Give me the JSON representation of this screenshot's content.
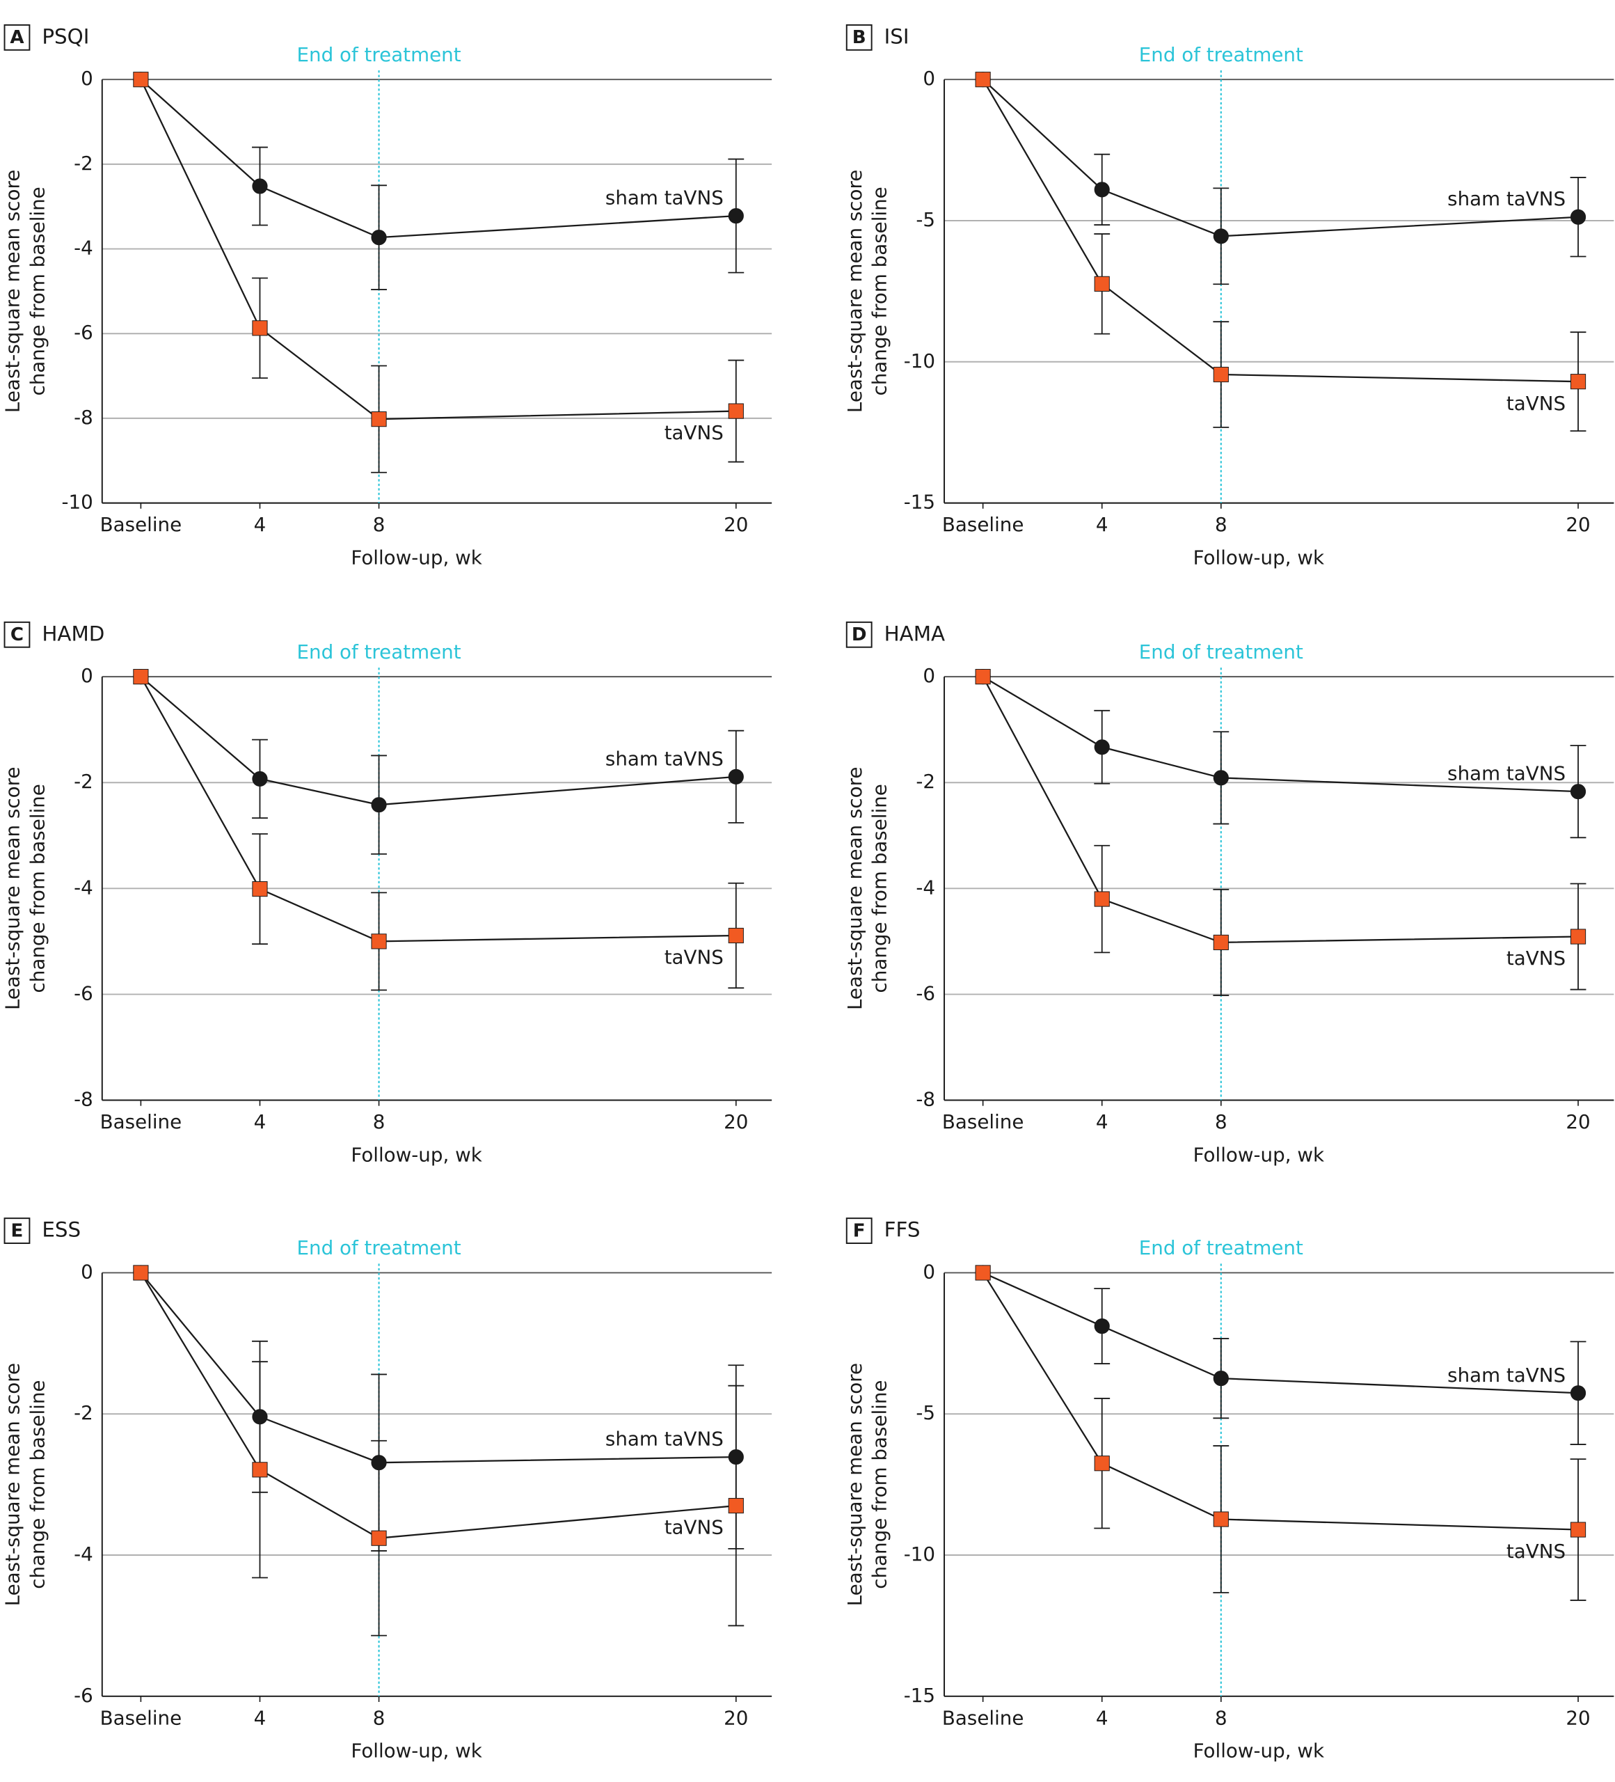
{
  "chart_data": [
    {
      "type": "line",
      "panel": "A",
      "title": "PSQI",
      "xlabel": "Follow-up, wk",
      "ylabel": [
        "Least-square mean score",
        "change from baseline"
      ],
      "x": [
        0,
        4,
        8,
        20
      ],
      "xlim": [
        -1.3,
        21.2
      ],
      "xticks": [
        {
          "value": 0,
          "label": "Baseline"
        },
        4,
        8,
        20
      ],
      "ylim": [
        -10,
        0
      ],
      "yticks": [
        0,
        -2,
        -4,
        -6,
        -8,
        -10
      ],
      "grid": true,
      "vline": {
        "x": 8,
        "label": "End of treatment",
        "color": "#2bc4d8"
      },
      "series": [
        {
          "name": "sham taVNS",
          "color": "#1a1a1a",
          "marker": "circle",
          "values": [
            0,
            -2.52,
            -3.73,
            -3.22
          ],
          "errors": [
            null,
            0.92,
            1.23,
            1.34
          ]
        },
        {
          "name": "taVNS",
          "color": "#f15a22",
          "marker": "square",
          "values": [
            0,
            -5.87,
            -8.02,
            -7.83
          ],
          "errors": [
            null,
            1.18,
            1.26,
            1.2
          ]
        }
      ]
    },
    {
      "type": "line",
      "panel": "B",
      "title": "ISI",
      "xlabel": "Follow-up, wk",
      "ylabel": [
        "Least-square mean score",
        "change from baseline"
      ],
      "x": [
        0,
        4,
        8,
        20
      ],
      "xlim": [
        -1.3,
        21.2
      ],
      "xticks": [
        {
          "value": 0,
          "label": "Baseline"
        },
        4,
        8,
        20
      ],
      "ylim": [
        -15,
        0
      ],
      "yticks": [
        0,
        -5,
        -10,
        -15
      ],
      "grid": true,
      "vline": {
        "x": 8,
        "label": "End of treatment",
        "color": "#2bc4d8"
      },
      "series": [
        {
          "name": "sham taVNS",
          "color": "#1a1a1a",
          "marker": "circle",
          "values": [
            0,
            -3.9,
            -5.55,
            -4.87
          ],
          "errors": [
            null,
            1.25,
            1.7,
            1.4
          ]
        },
        {
          "name": "taVNS",
          "color": "#f15a22",
          "marker": "square",
          "values": [
            0,
            -7.24,
            -10.45,
            -10.7
          ],
          "errors": [
            null,
            1.77,
            1.87,
            1.75
          ]
        }
      ]
    },
    {
      "type": "line",
      "panel": "C",
      "title": "HAMD",
      "xlabel": "Follow-up, wk",
      "ylabel": [
        "Least-square mean score",
        "change from baseline"
      ],
      "x": [
        0,
        4,
        8,
        20
      ],
      "xlim": [
        -1.3,
        21.2
      ],
      "xticks": [
        {
          "value": 0,
          "label": "Baseline"
        },
        4,
        8,
        20
      ],
      "ylim": [
        -8,
        0
      ],
      "yticks": [
        0,
        -2,
        -4,
        -6,
        -8
      ],
      "grid": true,
      "vline": {
        "x": 8,
        "label": "End of treatment",
        "color": "#2bc4d8"
      },
      "series": [
        {
          "name": "sham taVNS",
          "color": "#1a1a1a",
          "marker": "circle",
          "values": [
            0,
            -1.93,
            -2.42,
            -1.89
          ],
          "errors": [
            null,
            0.74,
            0.93,
            0.87
          ]
        },
        {
          "name": "taVNS",
          "color": "#f15a22",
          "marker": "square",
          "values": [
            0,
            -4.01,
            -5.0,
            -4.89
          ],
          "errors": [
            null,
            1.04,
            0.92,
            0.99
          ]
        }
      ]
    },
    {
      "type": "line",
      "panel": "D",
      "title": "HAMA",
      "xlabel": "Follow-up, wk",
      "ylabel": [
        "Least-square mean score",
        "change from baseline"
      ],
      "x": [
        0,
        4,
        8,
        20
      ],
      "xlim": [
        -1.3,
        21.2
      ],
      "xticks": [
        {
          "value": 0,
          "label": "Baseline"
        },
        4,
        8,
        20
      ],
      "ylim": [
        -8,
        0
      ],
      "yticks": [
        0,
        -2,
        -4,
        -6,
        -8
      ],
      "grid": true,
      "vline": {
        "x": 8,
        "label": "End of treatment",
        "color": "#2bc4d8"
      },
      "series": [
        {
          "name": "sham taVNS",
          "color": "#1a1a1a",
          "marker": "circle",
          "values": [
            0,
            -1.33,
            -1.91,
            -2.17
          ],
          "errors": [
            null,
            0.69,
            0.87,
            0.87
          ]
        },
        {
          "name": "taVNS",
          "color": "#f15a22",
          "marker": "square",
          "values": [
            0,
            -4.2,
            -5.02,
            -4.91
          ],
          "errors": [
            null,
            1.01,
            1.0,
            1.0
          ]
        }
      ]
    },
    {
      "type": "line",
      "panel": "E",
      "title": "ESS",
      "xlabel": "Follow-up, wk",
      "ylabel": [
        "Least-square mean score",
        "change from baseline"
      ],
      "x": [
        0,
        4,
        8,
        20
      ],
      "xlim": [
        -1.3,
        21.2
      ],
      "xticks": [
        {
          "value": 0,
          "label": "Baseline"
        },
        4,
        8,
        20
      ],
      "ylim": [
        -6,
        0
      ],
      "yticks": [
        0,
        -2,
        -4,
        -6
      ],
      "grid": true,
      "vline": {
        "x": 8,
        "label": "End of treatment",
        "color": "#2bc4d8"
      },
      "series": [
        {
          "name": "sham taVNS",
          "color": "#1a1a1a",
          "marker": "circle",
          "values": [
            0,
            -2.04,
            -2.69,
            -2.61
          ],
          "errors": [
            null,
            1.07,
            1.25,
            1.3
          ]
        },
        {
          "name": "taVNS",
          "color": "#f15a22",
          "marker": "square",
          "values": [
            0,
            -2.79,
            -3.76,
            -3.3
          ],
          "errors": [
            null,
            1.53,
            1.38,
            1.7
          ]
        }
      ]
    },
    {
      "type": "line",
      "panel": "F",
      "title": "FFS",
      "xlabel": "Follow-up, wk",
      "ylabel": [
        "Least-square mean score",
        "change from baseline"
      ],
      "x": [
        0,
        4,
        8,
        20
      ],
      "xlim": [
        -1.3,
        21.2
      ],
      "xticks": [
        {
          "value": 0,
          "label": "Baseline"
        },
        4,
        8,
        20
      ],
      "ylim": [
        -15,
        0
      ],
      "yticks": [
        0,
        -5,
        -10,
        -15
      ],
      "grid": true,
      "vline": {
        "x": 8,
        "label": "End of treatment",
        "color": "#2bc4d8"
      },
      "series": [
        {
          "name": "sham taVNS",
          "color": "#1a1a1a",
          "marker": "circle",
          "values": [
            0,
            -1.89,
            -3.74,
            -4.26
          ],
          "errors": [
            null,
            1.33,
            1.41,
            1.82
          ]
        },
        {
          "name": "taVNS",
          "color": "#f15a22",
          "marker": "square",
          "values": [
            0,
            -6.75,
            -8.73,
            -9.1
          ],
          "errors": [
            null,
            2.3,
            2.6,
            2.5
          ]
        }
      ]
    }
  ]
}
